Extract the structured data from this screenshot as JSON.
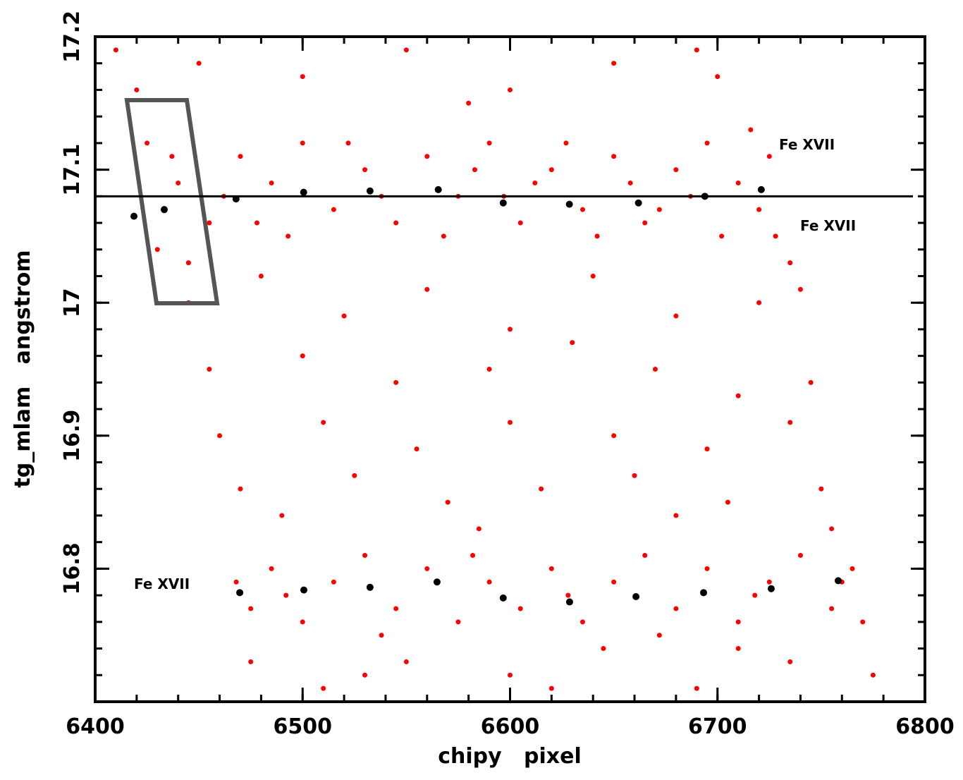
{
  "chart_data": {
    "type": "scatter",
    "x_label": "chipy   pixel",
    "y_label": "tg_mlam   angstrom",
    "xlim": [
      6400,
      6800
    ],
    "xticks": [
      6400,
      6500,
      6600,
      6700,
      6800
    ],
    "ylim": [
      16.7,
      17.2
    ],
    "yticks": [
      16.8,
      16.9,
      {
        "value": 17,
        "label": "17"
      },
      17.1,
      17.2
    ],
    "reference_line": 17.08,
    "annotations": [
      "Fe XVII",
      "Fe XVII",
      "Fe XVII"
    ],
    "series": [
      {
        "color": "#ff0000",
        "x": [
          6410,
          6450,
          6500,
          6550,
          6600,
          6650,
          6700,
          6420,
          6580,
          6690,
          6425,
          6440,
          6455,
          6430,
          6445,
          6470,
          6485,
          6500,
          6515,
          6530,
          6545,
          6560,
          6575,
          6590,
          6605,
          6620,
          6635,
          6650,
          6665,
          6680,
          6695,
          6710,
          6720,
          6725,
          6728,
          6478,
          6522,
          6568,
          6612,
          6658,
          6702,
          6493,
          6538,
          6583,
          6627,
          6672,
          6716,
          6437,
          6462,
          6597,
          6642,
          6687,
          6735,
          6445,
          6480,
          6520,
          6560,
          6600,
          6640,
          6680,
          6720,
          6740,
          6455,
          6500,
          6545,
          6590,
          6630,
          6670,
          6710,
          6745,
          6460,
          6510,
          6555,
          6600,
          6650,
          6695,
          6735,
          6470,
          6525,
          6570,
          6615,
          6660,
          6705,
          6750,
          6490,
          6585,
          6680,
          6755,
          6468,
          6475,
          6485,
          6500,
          6515,
          6530,
          6545,
          6560,
          6575,
          6590,
          6605,
          6620,
          6635,
          6650,
          6665,
          6680,
          6695,
          6710,
          6725,
          6740,
          6755,
          6765,
          6770,
          6492,
          6538,
          6582,
          6628,
          6672,
          6718,
          6760,
          6475,
          6510,
          6550,
          6600,
          6645,
          6690,
          6735,
          6775,
          6530,
          6620,
          6710
        ],
        "y": [
          17.19,
          17.18,
          17.17,
          17.19,
          17.16,
          17.18,
          17.17,
          17.16,
          17.15,
          17.19,
          17.12,
          17.09,
          17.06,
          17.04,
          17.03,
          17.11,
          17.09,
          17.12,
          17.07,
          17.1,
          17.06,
          17.11,
          17.08,
          17.12,
          17.06,
          17.1,
          17.07,
          17.11,
          17.06,
          17.1,
          17.12,
          17.09,
          17.07,
          17.11,
          17.05,
          17.06,
          17.12,
          17.05,
          17.09,
          17.09,
          17.05,
          17.05,
          17.08,
          17.1,
          17.12,
          17.07,
          17.13,
          17.11,
          17.08,
          17.08,
          17.05,
          17.08,
          17.03,
          17.0,
          17.02,
          16.99,
          17.01,
          16.98,
          17.02,
          16.99,
          17.0,
          17.01,
          16.95,
          16.96,
          16.94,
          16.95,
          16.97,
          16.95,
          16.93,
          16.94,
          16.9,
          16.91,
          16.89,
          16.91,
          16.9,
          16.89,
          16.91,
          16.86,
          16.87,
          16.85,
          16.86,
          16.87,
          16.85,
          16.86,
          16.84,
          16.83,
          16.84,
          16.83,
          16.79,
          16.77,
          16.8,
          16.76,
          16.79,
          16.81,
          16.77,
          16.8,
          16.76,
          16.79,
          16.77,
          16.8,
          16.76,
          16.79,
          16.81,
          16.77,
          16.8,
          16.76,
          16.79,
          16.81,
          16.77,
          16.8,
          16.76,
          16.78,
          16.75,
          16.81,
          16.78,
          16.75,
          16.78,
          16.79,
          16.73,
          16.71,
          16.73,
          16.72,
          16.74,
          16.71,
          16.73,
          16.72,
          16.72,
          16.71,
          16.74
        ]
      },
      {
        "color": "#000000",
        "x": [
          6418.7,
          6433.3,
          6467.9,
          6500.5,
          6532.5,
          6565.4,
          6596.7,
          6628.6,
          6661.9,
          6693.9,
          6721.1,
          6469.7,
          6500.6,
          6532.5,
          6564.8,
          6596.7,
          6628.7,
          6660.7,
          6693.3,
          6725.9,
          6758.2
        ],
        "y": [
          17.065,
          17.07,
          17.078,
          17.083,
          17.084,
          17.085,
          17.075,
          17.074,
          17.075,
          17.08,
          17.085,
          16.782,
          16.784,
          16.786,
          16.79,
          16.778,
          16.775,
          16.779,
          16.782,
          16.785,
          16.791
        ]
      }
    ]
  }
}
